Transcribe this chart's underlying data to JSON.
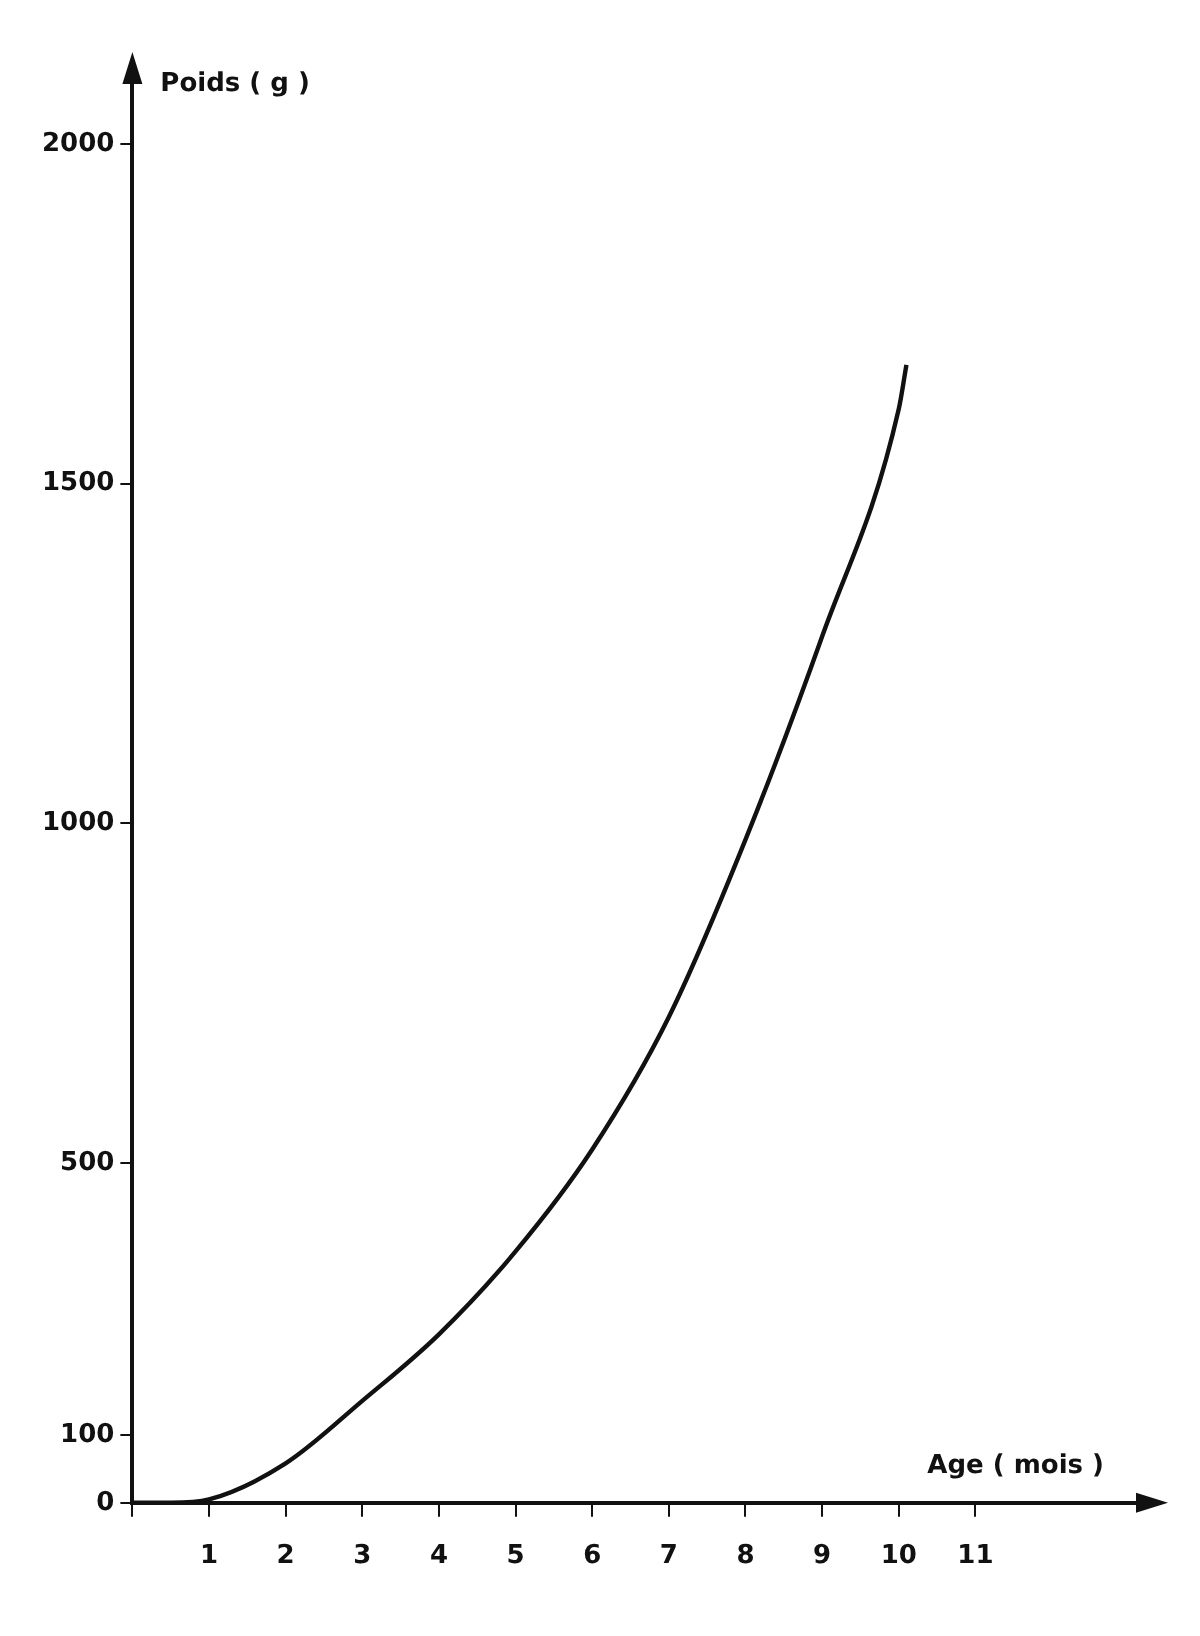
{
  "chart_data": {
    "type": "line",
    "xlabel": "Age ( mois )",
    "ylabel": "Poids ( g )",
    "series": [
      {
        "color": "#111111",
        "x": [
          0,
          0.5,
          1,
          2,
          3,
          4,
          5,
          6,
          7,
          8,
          9,
          10,
          10.1
        ],
        "values": [
          0,
          0,
          5,
          58,
          150,
          248,
          370,
          520,
          715,
          976,
          1275,
          1610,
          1675
        ]
      }
    ],
    "xlim": [
      0,
      13.2
    ],
    "xticks": [
      {
        "value": 0,
        "label": null
      },
      1,
      2,
      3,
      4,
      5,
      6,
      7,
      8,
      9,
      10,
      11
    ],
    "ylim": [
      0,
      2100
    ],
    "yticks": [
      0,
      100,
      500,
      1000,
      1500,
      2000
    ],
    "grid": false,
    "legend": false,
    "marker": "none",
    "line_style": "solid"
  }
}
